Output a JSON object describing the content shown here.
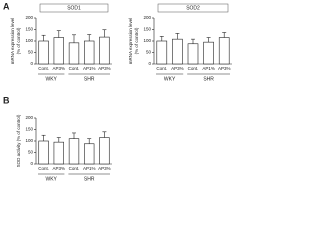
{
  "panels": [
    "A",
    "B"
  ],
  "chart_data": [
    {
      "type": "bar",
      "title": "SOD1",
      "ylabel": [
        "mRNA expression level",
        "(% of control)"
      ],
      "categories": [
        "Cont.",
        "AP3%",
        "Cont.",
        "AP1%",
        "AP3%"
      ],
      "groups": [
        {
          "name": "WKY",
          "size": 2
        },
        {
          "name": "SHR",
          "size": 3
        }
      ],
      "values": [
        100,
        115,
        92,
        100,
        117
      ],
      "errors": [
        25,
        30,
        35,
        28,
        32
      ],
      "color": "#ffffff",
      "ylim": [
        0,
        200
      ],
      "yticks": [
        0,
        50,
        100,
        150,
        200
      ]
    },
    {
      "type": "bar",
      "title": "SOD2",
      "ylabel": [
        "mRNA expression level",
        "(% of control)"
      ],
      "categories": [
        "Cont.",
        "AP3%",
        "Cont.",
        "AP1%",
        "AP3%"
      ],
      "groups": [
        {
          "name": "WKY",
          "size": 2
        },
        {
          "name": "SHR",
          "size": 3
        }
      ],
      "values": [
        100,
        108,
        88,
        95,
        115
      ],
      "errors": [
        20,
        25,
        20,
        20,
        22
      ],
      "color": "#ffffff",
      "ylim": [
        0,
        200
      ],
      "yticks": [
        0,
        50,
        100,
        150,
        200
      ]
    },
    {
      "type": "bar",
      "ylabel": [
        "SOD activity (% of control)"
      ],
      "categories": [
        "Cont.",
        "AP3%",
        "Cont.",
        "AP1%",
        "AP3%"
      ],
      "groups": [
        {
          "name": "WKY",
          "size": 2
        },
        {
          "name": "SHR",
          "size": 3
        }
      ],
      "values": [
        100,
        95,
        110,
        88,
        115
      ],
      "errors": [
        25,
        20,
        25,
        22,
        25
      ],
      "color": "#ffffff",
      "ylim": [
        0,
        200
      ],
      "yticks": [
        0,
        50,
        100,
        150,
        200
      ]
    }
  ]
}
